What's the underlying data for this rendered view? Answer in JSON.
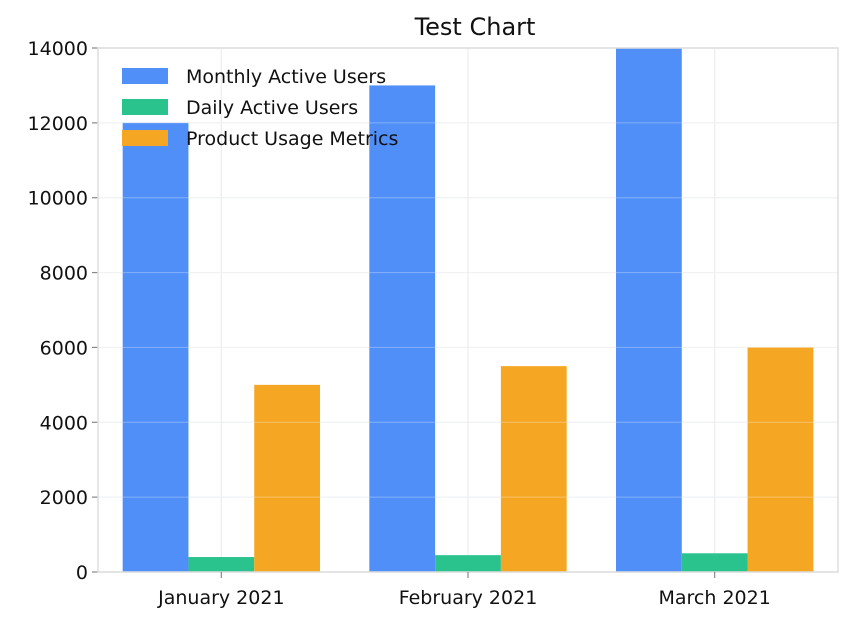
{
  "chart_data": {
    "type": "bar",
    "title": "Test Chart",
    "xlabel": "",
    "ylabel": "",
    "categories": [
      "January 2021",
      "February 2021",
      "March 2021"
    ],
    "series": [
      {
        "name": "Monthly Active Users",
        "values": [
          12000,
          13000,
          14000
        ],
        "color": "#4f8ff7"
      },
      {
        "name": "Daily Active Users",
        "values": [
          400,
          450,
          500
        ],
        "color": "#2ac28d"
      },
      {
        "name": "Product Usage Metrics",
        "values": [
          5000,
          5500,
          6000
        ],
        "color": "#f5a623"
      }
    ],
    "ylim": [
      0,
      14000
    ],
    "yticks": [
      0,
      2000,
      4000,
      6000,
      8000,
      10000,
      12000,
      14000
    ],
    "grid": true,
    "legend_position": "top-left"
  }
}
